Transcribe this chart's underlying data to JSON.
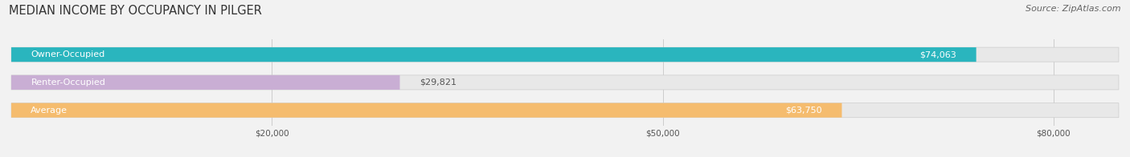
{
  "title": "MEDIAN INCOME BY OCCUPANCY IN PILGER",
  "source": "Source: ZipAtlas.com",
  "categories": [
    "Owner-Occupied",
    "Renter-Occupied",
    "Average"
  ],
  "values": [
    74063,
    29821,
    63750
  ],
  "bar_colors": [
    "#2ab5be",
    "#c9aed4",
    "#f5bc6e"
  ],
  "label_texts": [
    "$74,063",
    "$29,821",
    "$63,750"
  ],
  "xlim": [
    0,
    85000
  ],
  "xticks": [
    20000,
    50000,
    80000
  ],
  "xtick_labels": [
    "$20,000",
    "$50,000",
    "$80,000"
  ],
  "bg_color": "#f2f2f2",
  "bar_bg_color": "#e8e8e8",
  "title_fontsize": 10.5,
  "source_fontsize": 8,
  "label_fontsize": 8,
  "bar_height": 0.52
}
